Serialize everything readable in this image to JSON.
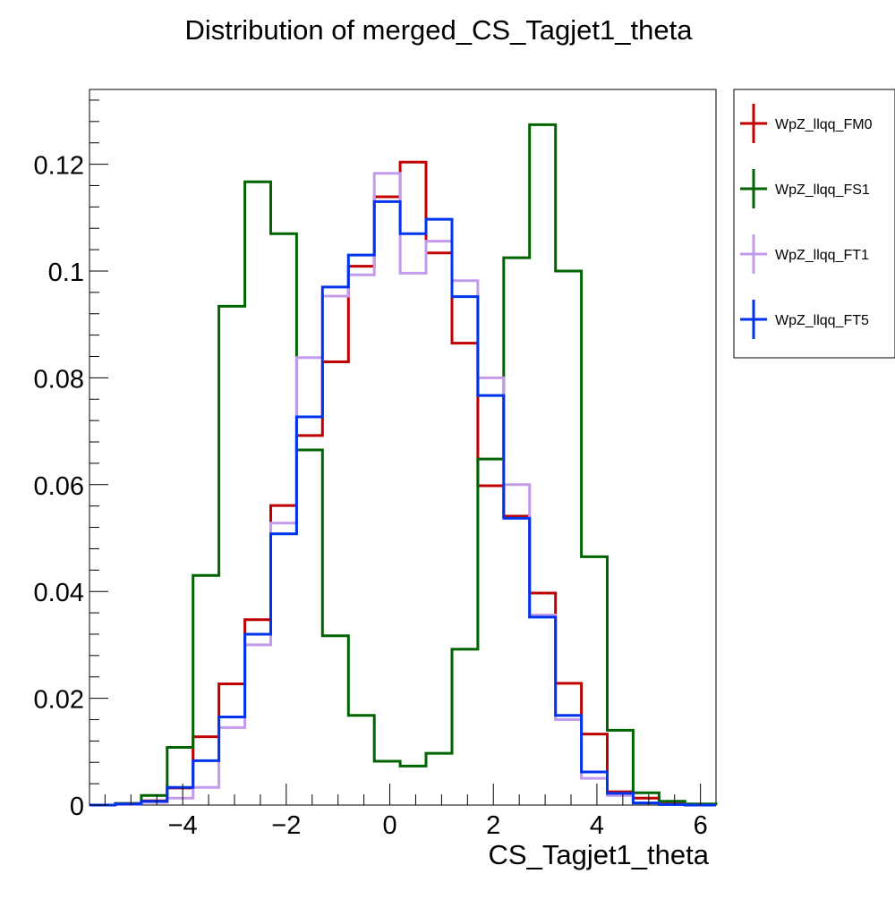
{
  "chart_data": {
    "type": "line",
    "title": "Distribution of merged_CS_Tagjet1_theta",
    "xlabel": "CS_Tagjet1_theta",
    "ylabel": "",
    "xlim": [
      -5.8,
      6.3
    ],
    "ylim": [
      0,
      0.134
    ],
    "x_ticks": [
      -4,
      -2,
      0,
      2,
      4,
      6
    ],
    "x_tick_labels": [
      "−4",
      "−2",
      "0",
      "2",
      "4",
      "6"
    ],
    "y_ticks": [
      0,
      0.02,
      0.04,
      0.06,
      0.08,
      0.1,
      0.12
    ],
    "y_tick_labels": [
      "0",
      "0.02",
      "0.04",
      "0.06",
      "0.08",
      "0.1",
      "0.12"
    ],
    "grid": false,
    "legend_position": "right",
    "bin_edges": [
      -5.8,
      -5.3,
      -4.8,
      -4.3,
      -3.8,
      -3.3,
      -2.8,
      -2.3,
      -1.8,
      -1.3,
      -0.8,
      -0.3,
      0.2,
      0.7,
      1.2,
      1.7,
      2.2,
      2.7,
      3.2,
      3.7,
      4.2,
      4.7,
      5.2,
      5.7,
      6.3
    ],
    "series": [
      {
        "name": "WpZ_llqq_FM0",
        "color": "#c00000",
        "values": [
          0,
          0.0003,
          0.0008,
          0.0032,
          0.0128,
          0.0227,
          0.0347,
          0.0561,
          0.0692,
          0.083,
          0.1009,
          0.1139,
          0.1204,
          0.1034,
          0.0865,
          0.0598,
          0.0541,
          0.0397,
          0.0228,
          0.0133,
          0.0025,
          0.0013,
          0.0003,
          0
        ]
      },
      {
        "name": "WpZ_llqq_FS1",
        "color": "#006400",
        "values": [
          0,
          0.0003,
          0.0018,
          0.0108,
          0.043,
          0.0934,
          0.1167,
          0.107,
          0.0665,
          0.0317,
          0.0168,
          0.0082,
          0.0073,
          0.0097,
          0.0292,
          0.0648,
          0.1025,
          0.1274,
          0.1,
          0.0465,
          0.014,
          0.0023,
          0.0007,
          0.0002
        ]
      },
      {
        "name": "WpZ_llqq_FT1",
        "color": "#c39bec",
        "values": [
          0,
          0.0001,
          0.0005,
          0.0013,
          0.0033,
          0.0145,
          0.03,
          0.0528,
          0.0838,
          0.0953,
          0.0993,
          0.1183,
          0.0996,
          0.1056,
          0.0982,
          0.08,
          0.06,
          0.0356,
          0.016,
          0.005,
          0.0018,
          0.0004,
          0.0001,
          0
        ]
      },
      {
        "name": "WpZ_llqq_FT5",
        "color": "#0033ee",
        "values": [
          0,
          0.0002,
          0.0007,
          0.0033,
          0.0083,
          0.0165,
          0.032,
          0.0508,
          0.0727,
          0.097,
          0.103,
          0.113,
          0.107,
          0.1097,
          0.0952,
          0.0767,
          0.0537,
          0.0352,
          0.0168,
          0.0062,
          0.0022,
          0.0004,
          0.0001,
          0
        ]
      }
    ]
  }
}
